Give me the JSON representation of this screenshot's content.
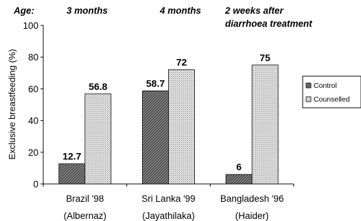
{
  "chart_data": {
    "type": "bar",
    "ylabel": "Exclusive breastfeeding (%)",
    "ylim": [
      0,
      100
    ],
    "yticks": [
      0,
      20,
      40,
      60,
      80,
      100
    ],
    "grid": false,
    "legend_position": "right",
    "headers": [
      {
        "lines": [
          "Age:"
        ]
      },
      {
        "lines": [
          "3 months"
        ]
      },
      {
        "lines": [
          "4 months"
        ]
      },
      {
        "lines": [
          "2 weeks after",
          "diarrhoea treatment"
        ]
      }
    ],
    "categories": [
      {
        "lines": [
          "Brazil '98",
          "(Albernaz)"
        ]
      },
      {
        "lines": [
          "Sri Lanka '99",
          "(Jayathilaka)"
        ]
      },
      {
        "lines": [
          "Bangladesh '96",
          "(Haider)"
        ]
      }
    ],
    "series": [
      {
        "name": "Control",
        "values": [
          12.7,
          58.7,
          6
        ],
        "labels": [
          "12.7",
          "58.7",
          "6"
        ],
        "pattern": "diagonal-dark"
      },
      {
        "name": "Counselled",
        "values": [
          56.8,
          72,
          75
        ],
        "labels": [
          "56.8",
          "72",
          "75"
        ],
        "pattern": "dotted-light"
      }
    ]
  }
}
